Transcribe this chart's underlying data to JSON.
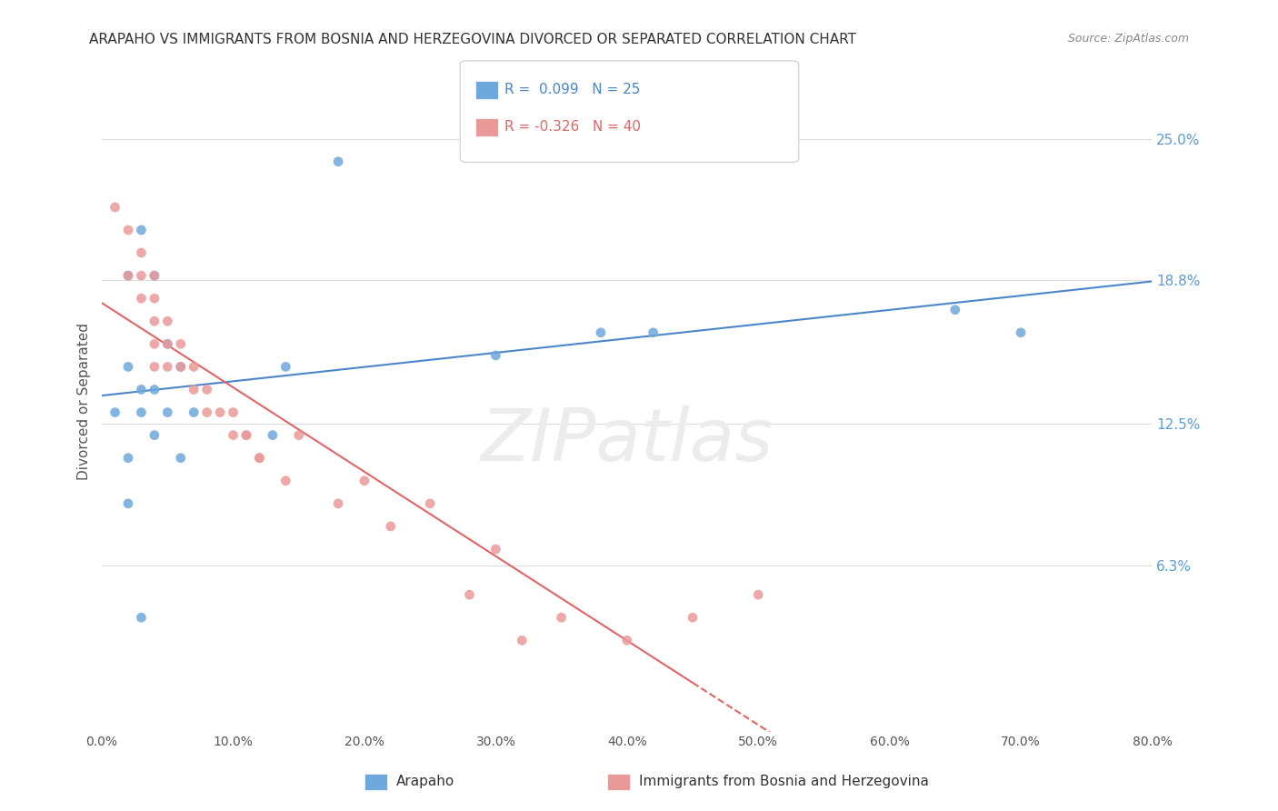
{
  "title": "ARAPAHO VS IMMIGRANTS FROM BOSNIA AND HERZEGOVINA DIVORCED OR SEPARATED CORRELATION CHART",
  "source": "Source: ZipAtlas.com",
  "ylabel": "Divorced or Separated",
  "ytick_labels": [
    "6.3%",
    "12.5%",
    "18.8%",
    "25.0%"
  ],
  "ytick_values": [
    0.063,
    0.125,
    0.188,
    0.25
  ],
  "xlim": [
    0.0,
    0.8
  ],
  "ylim": [
    -0.01,
    0.28
  ],
  "arapaho_color": "#6fa8dc",
  "bosnia_color": "#ea9999",
  "arapaho_line_color": "#4a86c8",
  "bosnia_line_color": "#e06666",
  "watermark": "ZIPatlas",
  "arapaho_points_x": [
    0.02,
    0.01,
    0.18,
    0.03,
    0.04,
    0.05,
    0.06,
    0.02,
    0.03,
    0.04,
    0.05,
    0.07,
    0.03,
    0.04,
    0.13,
    0.3,
    0.65,
    0.7,
    0.14,
    0.06,
    0.02,
    0.02,
    0.03,
    0.42,
    0.38
  ],
  "arapaho_points_y": [
    0.19,
    0.13,
    0.24,
    0.21,
    0.19,
    0.16,
    0.15,
    0.15,
    0.14,
    0.14,
    0.13,
    0.13,
    0.13,
    0.12,
    0.12,
    0.155,
    0.175,
    0.165,
    0.15,
    0.11,
    0.11,
    0.09,
    0.04,
    0.165,
    0.165
  ],
  "bosnia_points_x": [
    0.01,
    0.02,
    0.02,
    0.03,
    0.03,
    0.03,
    0.04,
    0.04,
    0.04,
    0.04,
    0.04,
    0.05,
    0.05,
    0.05,
    0.06,
    0.06,
    0.07,
    0.07,
    0.08,
    0.08,
    0.09,
    0.1,
    0.1,
    0.11,
    0.11,
    0.12,
    0.12,
    0.14,
    0.15,
    0.18,
    0.2,
    0.22,
    0.25,
    0.28,
    0.3,
    0.32,
    0.35,
    0.4,
    0.45,
    0.5
  ],
  "bosnia_points_y": [
    0.22,
    0.21,
    0.19,
    0.2,
    0.19,
    0.18,
    0.19,
    0.18,
    0.17,
    0.16,
    0.15,
    0.17,
    0.16,
    0.15,
    0.16,
    0.15,
    0.15,
    0.14,
    0.14,
    0.13,
    0.13,
    0.12,
    0.13,
    0.12,
    0.12,
    0.11,
    0.11,
    0.1,
    0.12,
    0.09,
    0.1,
    0.08,
    0.09,
    0.05,
    0.07,
    0.03,
    0.04,
    0.03,
    0.04,
    0.05
  ],
  "background_color": "#ffffff",
  "grid_color": "#dddddd"
}
